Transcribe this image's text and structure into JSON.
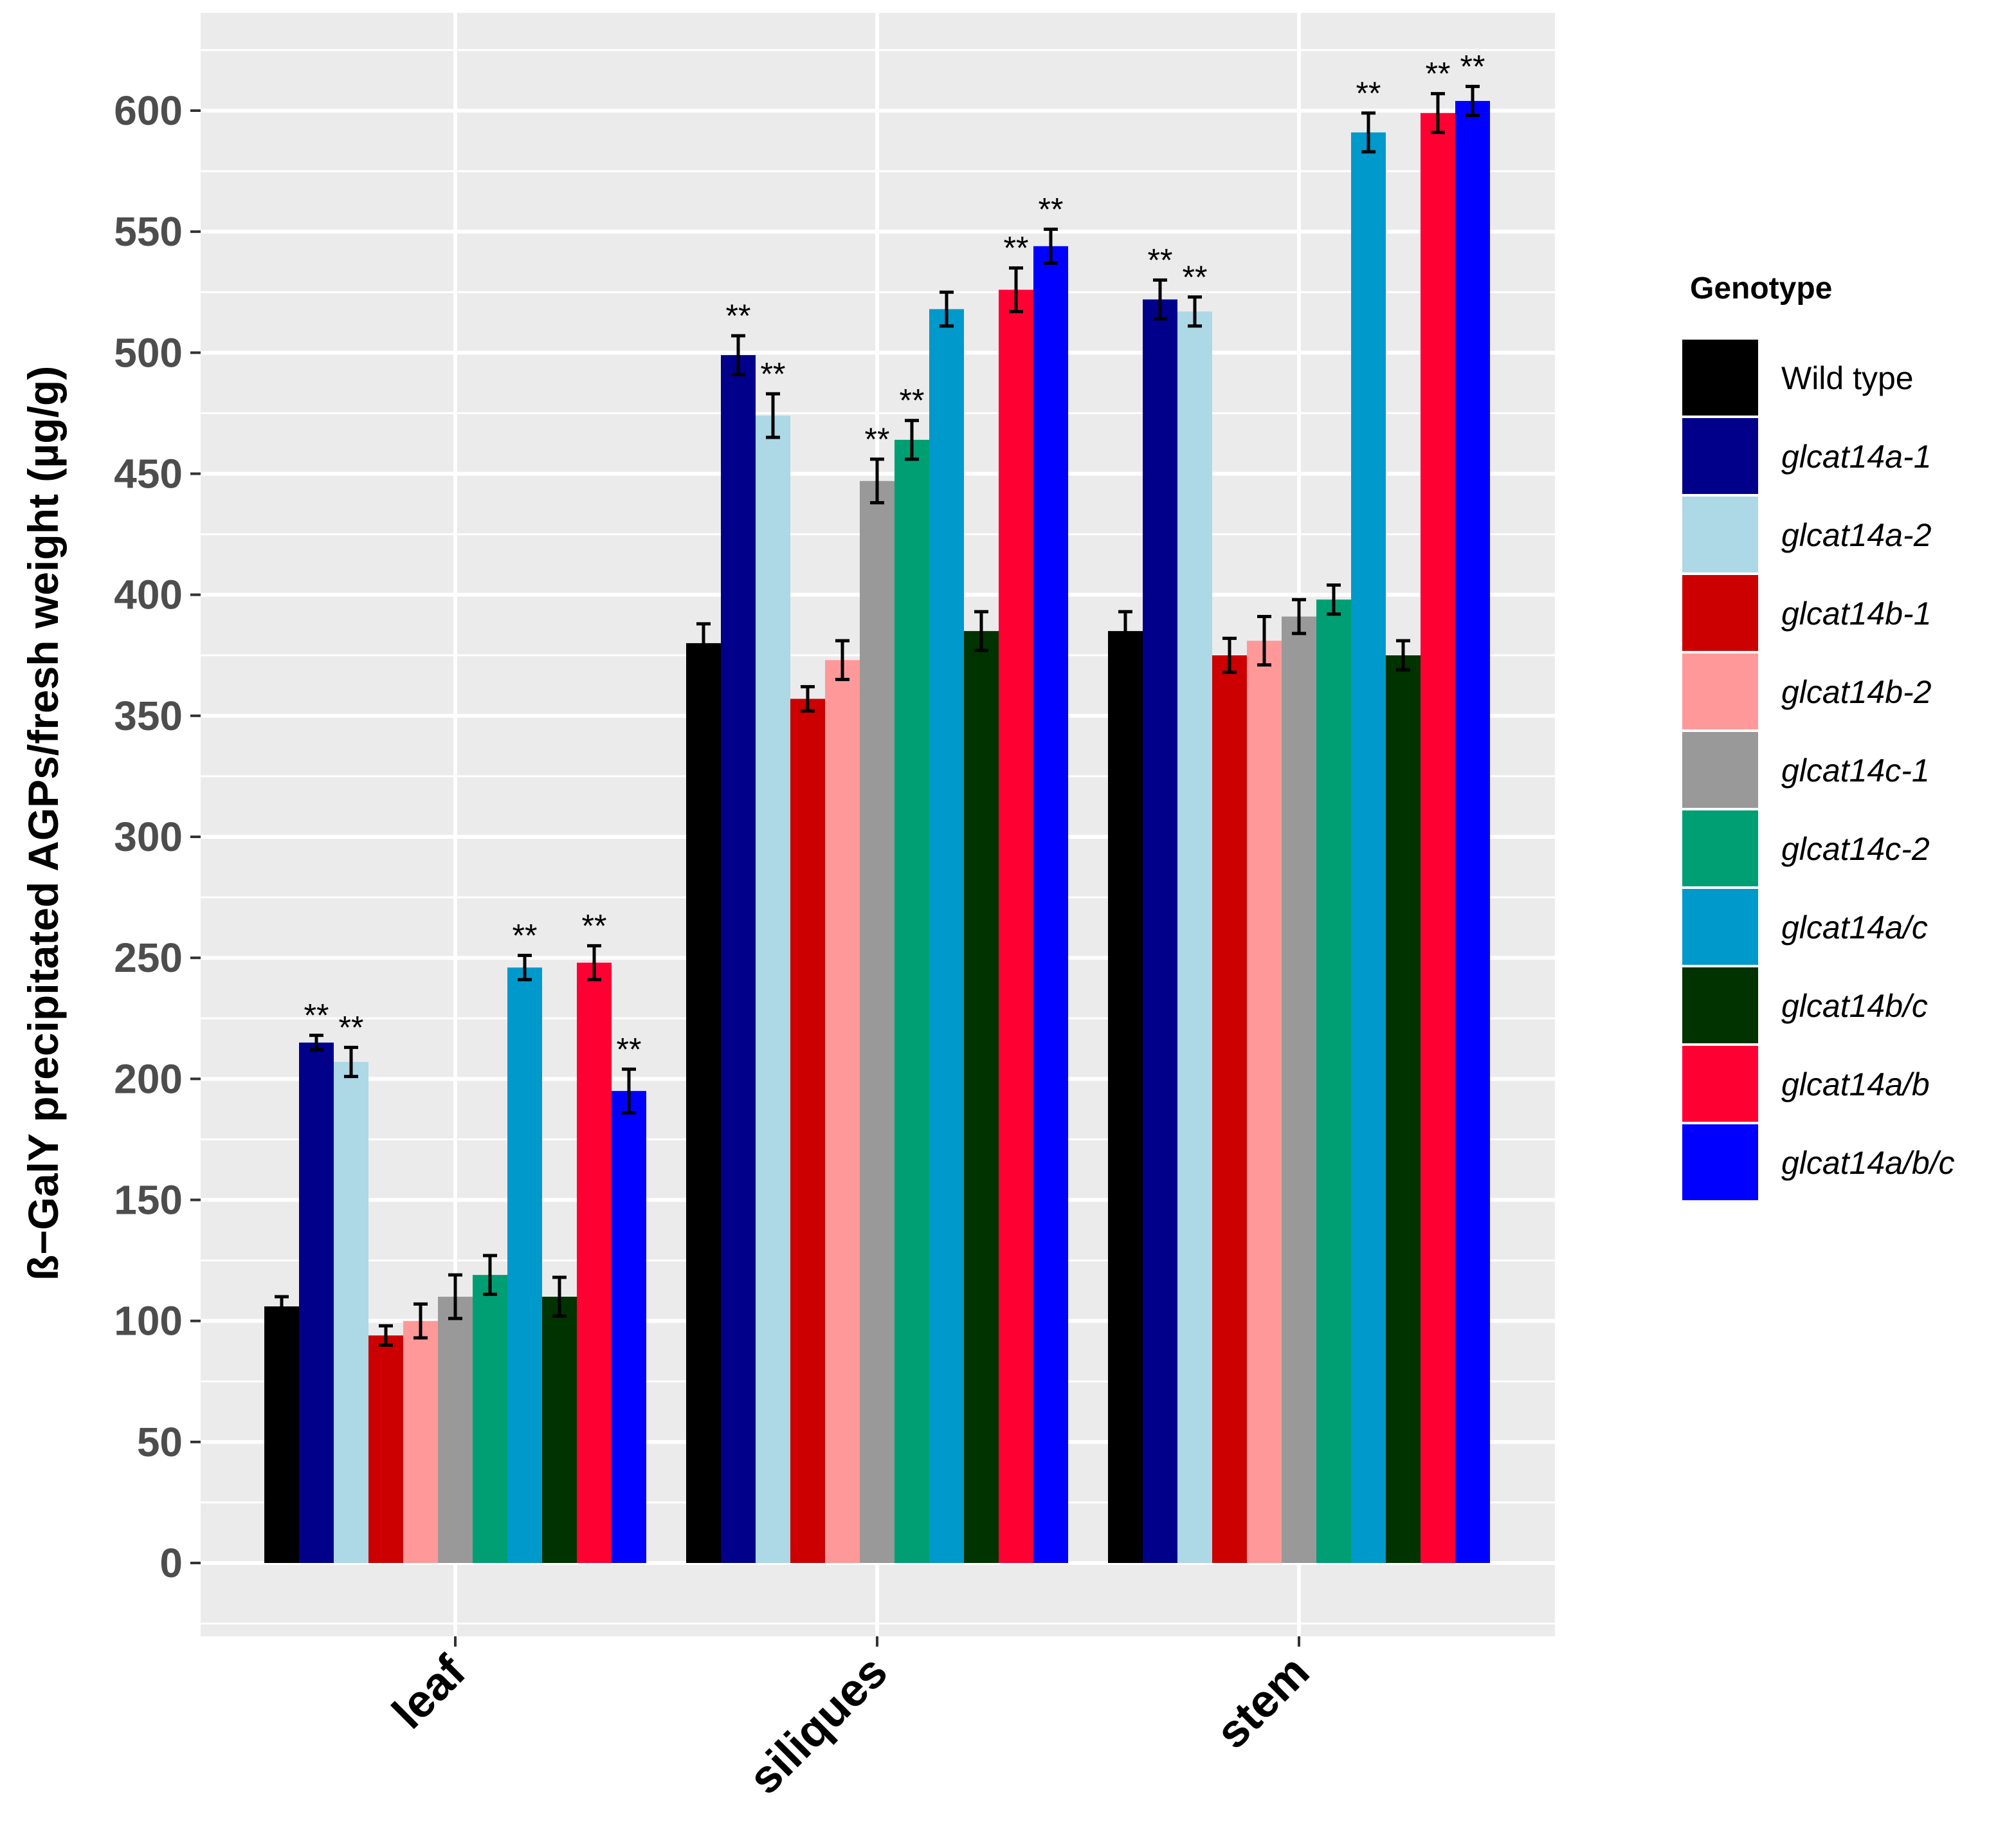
{
  "chart_data": {
    "type": "bar",
    "title": "",
    "xlabel": "",
    "ylabel": "ß−GalY precipitated AGPs/fresh weight (µg/g)",
    "ylim": [
      -25,
      640
    ],
    "yticks": [
      0,
      50,
      100,
      150,
      200,
      250,
      300,
      350,
      400,
      450,
      500,
      550,
      600
    ],
    "grid": true,
    "legend_position": "right",
    "legend_title": "Genotype",
    "categories": [
      "leaf",
      "siliques",
      "stem"
    ],
    "significance_marker": "**",
    "series": [
      {
        "name": "Wild type",
        "italic": false,
        "color": "#000000",
        "values": [
          106,
          380,
          385
        ],
        "errors": [
          4,
          8,
          8
        ],
        "significant": [
          false,
          false,
          false
        ]
      },
      {
        "name": "glcat14a-1",
        "italic": true,
        "color": "#00008B",
        "values": [
          215,
          499,
          522
        ],
        "errors": [
          3,
          8,
          8
        ],
        "significant": [
          true,
          true,
          true
        ]
      },
      {
        "name": "glcat14a-2",
        "italic": true,
        "color": "#ADD8E6",
        "values": [
          207,
          474,
          517
        ],
        "errors": [
          6,
          9,
          6
        ],
        "significant": [
          true,
          true,
          true
        ]
      },
      {
        "name": "glcat14b-1",
        "italic": true,
        "color": "#CC0000",
        "values": [
          94,
          357,
          375
        ],
        "errors": [
          4,
          5,
          7
        ],
        "significant": [
          false,
          false,
          false
        ]
      },
      {
        "name": "glcat14b-2",
        "italic": true,
        "color": "#FF9999",
        "values": [
          100,
          373,
          381
        ],
        "errors": [
          7,
          8,
          10
        ],
        "significant": [
          false,
          false,
          false
        ]
      },
      {
        "name": "glcat14c-1",
        "italic": true,
        "color": "#999999",
        "values": [
          110,
          447,
          391
        ],
        "errors": [
          9,
          9,
          7
        ],
        "significant": [
          false,
          true,
          false
        ]
      },
      {
        "name": "glcat14c-2",
        "italic": true,
        "color": "#009E73",
        "values": [
          119,
          464,
          398
        ],
        "errors": [
          8,
          8,
          6
        ],
        "significant": [
          false,
          true,
          false
        ]
      },
      {
        "name": "glcat14a/c",
        "italic": true,
        "color": "#0099CC",
        "values": [
          246,
          518,
          591
        ],
        "errors": [
          5,
          7,
          8
        ],
        "significant": [
          true,
          false,
          true
        ]
      },
      {
        "name": "glcat14b/c",
        "italic": true,
        "color": "#003300",
        "values": [
          110,
          385,
          375
        ],
        "errors": [
          8,
          8,
          6
        ],
        "significant": [
          false,
          false,
          false
        ]
      },
      {
        "name": "glcat14a/b",
        "italic": true,
        "color": "#FF0033",
        "values": [
          248,
          526,
          599
        ],
        "errors": [
          7,
          9,
          8
        ],
        "significant": [
          true,
          true,
          true
        ]
      },
      {
        "name": "glcat14a/b/c",
        "italic": true,
        "color": "#0000FF",
        "values": [
          195,
          544,
          604
        ],
        "errors": [
          9,
          7,
          6
        ],
        "significant": [
          true,
          true,
          true
        ]
      }
    ]
  },
  "colors": {
    "panel_background": "#EBEBEB",
    "grid_line": "#FFFFFF",
    "tick_text": "#4D4D4D"
  }
}
